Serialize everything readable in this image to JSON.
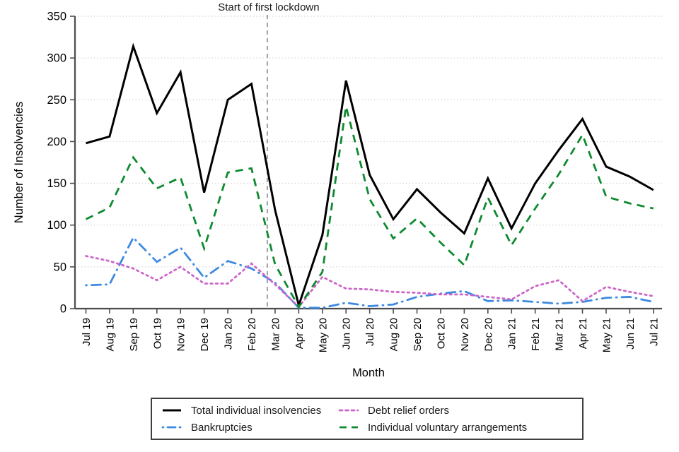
{
  "chart_data": {
    "type": "line",
    "title": "",
    "xlabel": "Month",
    "ylabel": "Number of Insolvencies",
    "ylim": [
      0,
      350
    ],
    "y_tick_step": 50,
    "grid": "horizontal dotted gridlines",
    "legend_position": "bottom box, two columns",
    "x": [
      "Jul 19",
      "Aug 19",
      "Sep 19",
      "Oct 19",
      "Nov 19",
      "Dec 19",
      "Jan 20",
      "Feb 20",
      "Mar 20",
      "Apr 20",
      "May 20",
      "Jun 20",
      "Jul 20",
      "Aug 20",
      "Sep 20",
      "Oct 20",
      "Nov 20",
      "Dec 20",
      "Jan 21",
      "Feb 21",
      "Mar 21",
      "Apr 21",
      "May 21",
      "Jun 21",
      "Jul 21"
    ],
    "annotations": [
      {
        "label": "Start of first lockdown",
        "type": "vertical-dashed-line",
        "month_index": 7.67,
        "color": "#8c8c8c"
      }
    ],
    "series": [
      {
        "name": "Total individual insolvencies",
        "color": "#000000",
        "line_style": "solid",
        "values": [
          198,
          206,
          314,
          234,
          283,
          139,
          250,
          269,
          118,
          4,
          88,
          273,
          160,
          107,
          143,
          115,
          90,
          156,
          96,
          150,
          190,
          227,
          170,
          158,
          142
        ]
      },
      {
        "name": "Bankruptcies",
        "color": "#3d8ae0",
        "line_style": "dashdot",
        "values": [
          28,
          29,
          85,
          56,
          73,
          37,
          57,
          48,
          31,
          1,
          1,
          7,
          3,
          5,
          14,
          18,
          21,
          9,
          10,
          8,
          6,
          8,
          13,
          14,
          8
        ]
      },
      {
        "name": "Debt relief orders",
        "color": "#cc66c8",
        "line_style": "dotted",
        "values": [
          63,
          57,
          48,
          34,
          50,
          30,
          30,
          54,
          29,
          2,
          38,
          24,
          23,
          20,
          19,
          17,
          17,
          14,
          11,
          27,
          34,
          9,
          26,
          20,
          15
        ]
      },
      {
        "name": "Individual voluntary arrangements",
        "color": "#0e8a30",
        "line_style": "dashed",
        "values": [
          107,
          121,
          181,
          144,
          157,
          72,
          163,
          168,
          53,
          2,
          44,
          242,
          131,
          84,
          108,
          79,
          52,
          133,
          76,
          120,
          161,
          208,
          134,
          126,
          120
        ]
      }
    ]
  }
}
